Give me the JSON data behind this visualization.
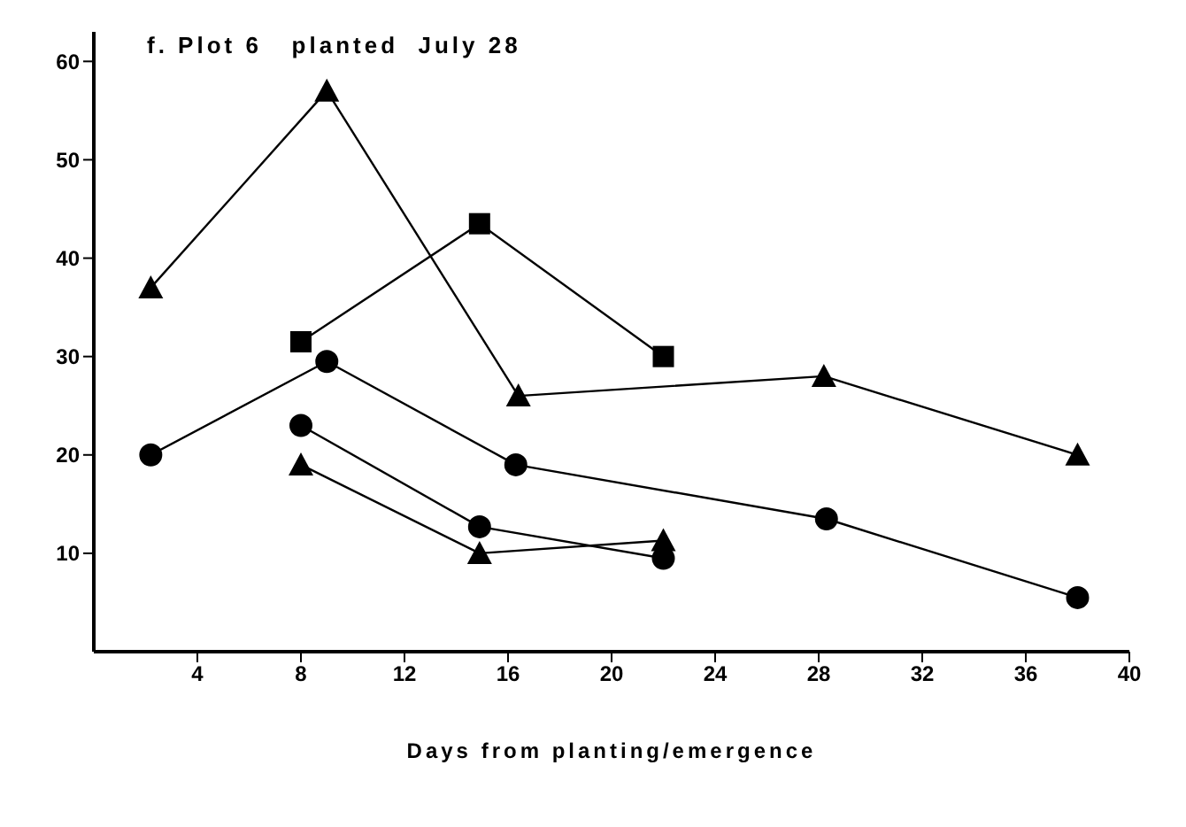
{
  "chart_data": {
    "type": "line",
    "title": "f. Plot 6   planted  July 28",
    "xlabel": "Days from planting/emergence",
    "xlim": [
      0,
      40
    ],
    "xticks": [
      4,
      8,
      12,
      16,
      20,
      24,
      28,
      32,
      36,
      40
    ],
    "ylim": [
      0,
      63
    ],
    "yticks": [
      10,
      20,
      30,
      40,
      50,
      60
    ],
    "grid": false,
    "legend": false,
    "series": [
      {
        "marker": "triangle",
        "color": "#000000",
        "x": [
          2.2,
          9,
          16.4,
          28.2,
          38
        ],
        "values": [
          37,
          57,
          26,
          28,
          20
        ]
      },
      {
        "marker": "square",
        "color": "#000000",
        "x": [
          8,
          14.9,
          22
        ],
        "values": [
          31.5,
          43.5,
          30
        ]
      },
      {
        "marker": "circle",
        "color": "#000000",
        "x": [
          2.2,
          9,
          16.3,
          28.3,
          38
        ],
        "values": [
          20,
          29.5,
          19,
          13.5,
          5.5
        ]
      },
      {
        "marker": "circle",
        "color": "#000000",
        "x": [
          8,
          14.9,
          22
        ],
        "values": [
          23,
          12.7,
          9.5
        ]
      },
      {
        "marker": "triangle",
        "color": "#000000",
        "x": [
          8,
          14.9,
          22
        ],
        "values": [
          19,
          10,
          11.3
        ]
      }
    ]
  }
}
